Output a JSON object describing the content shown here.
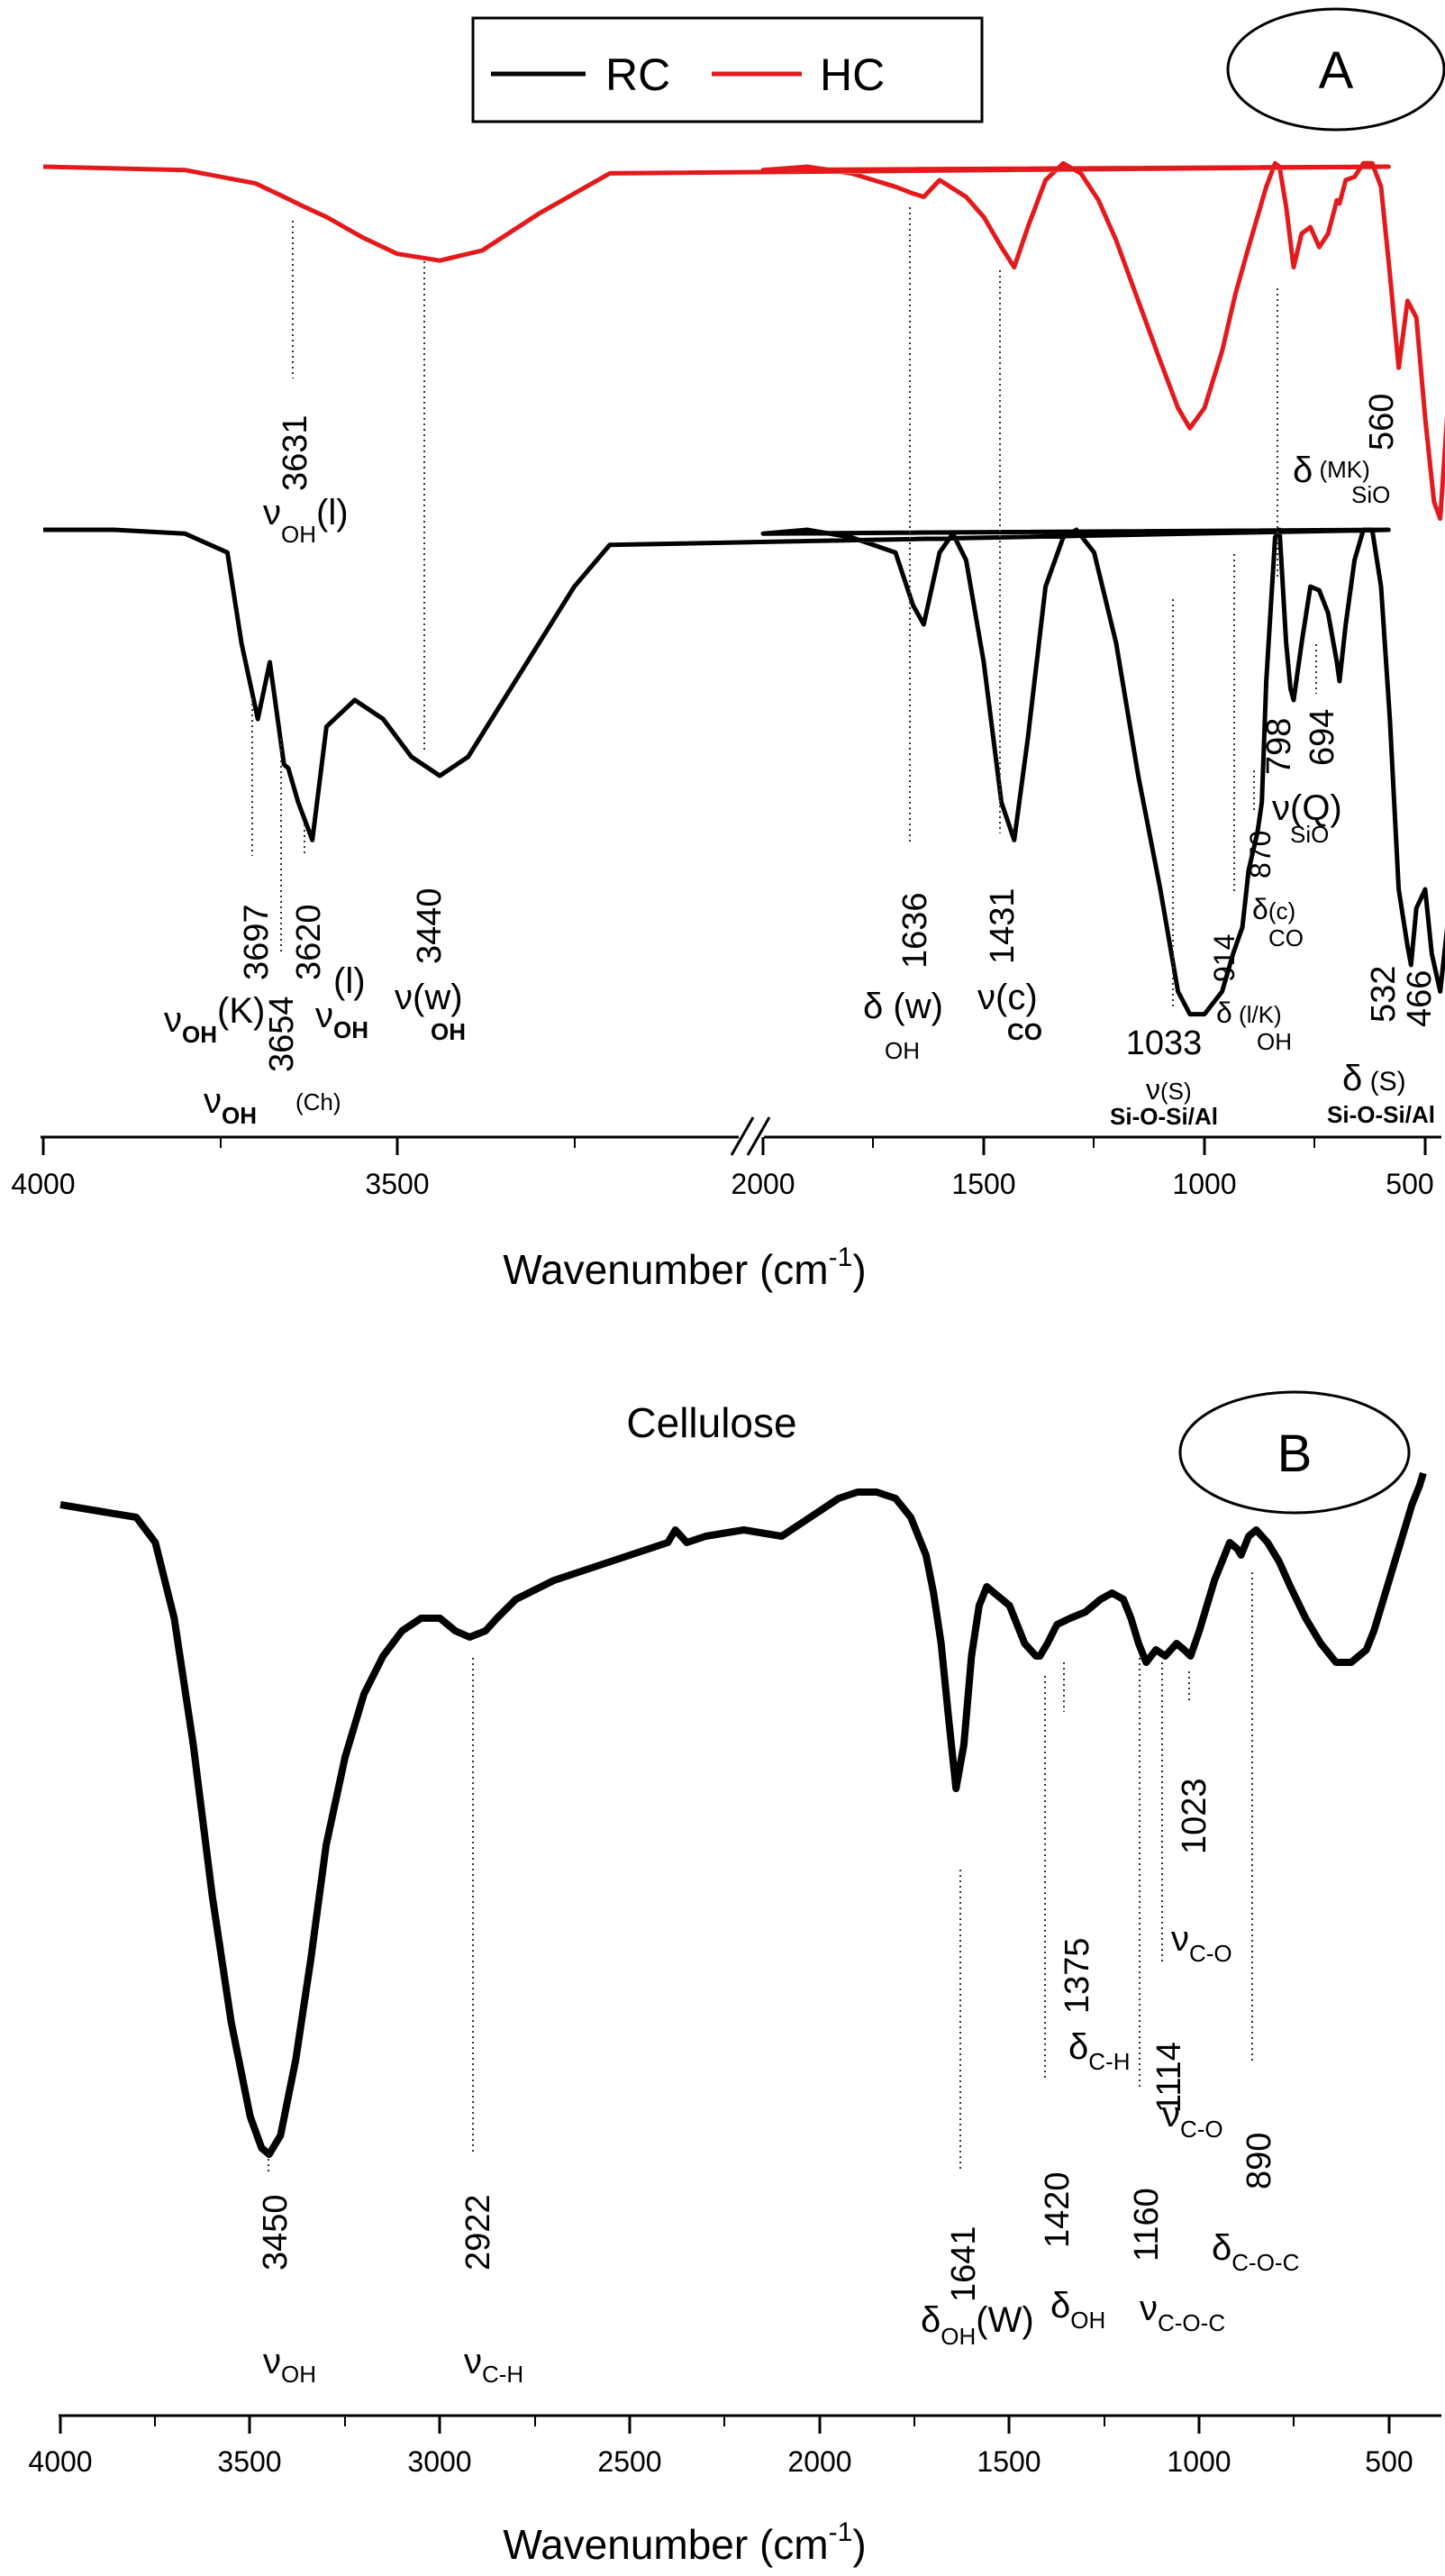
{
  "chart_data": [
    {
      "type": "line",
      "panel_label": "A",
      "xlabel": "Wavenumber (cm-1)",
      "xlabel_main": "Wavenumber (cm",
      "xlabel_sup": "-1",
      "xlabel_close": ")",
      "x_axis_break": [
        2000,
        2000
      ],
      "xlim": [
        4000,
        400
      ],
      "xticks": [
        "4000",
        "3500",
        "2000",
        "1500",
        "1000",
        "500"
      ],
      "legend": {
        "placement": "top-center",
        "entries": [
          "RC",
          "HC"
        ]
      },
      "series": [
        {
          "name": "HC",
          "color": "#e31a1c",
          "x": [
            4000,
            3800,
            3700,
            3660,
            3631,
            3600,
            3550,
            3500,
            3440,
            3380,
            3300,
            3200,
            2100,
            2000,
            1900,
            1800,
            1700,
            1660,
            1636,
            1600,
            1540,
            1500,
            1460,
            1431,
            1400,
            1360,
            1320,
            1280,
            1240,
            1200,
            1150,
            1100,
            1060,
            1033,
            1000,
            960,
            930,
            900,
            880,
            860,
            840,
            830,
            815,
            800,
            798,
            780,
            760,
            740,
            720,
            700,
            694,
            680,
            660,
            640,
            620,
            600,
            580,
            560,
            540,
            520,
            500,
            480,
            466,
            440,
            420
          ],
          "y": [
            0.0,
            0.01,
            0.05,
            0.09,
            0.12,
            0.15,
            0.21,
            0.26,
            0.28,
            0.25,
            0.14,
            0.02,
            0.0,
            0.01,
            0.0,
            0.02,
            0.06,
            0.08,
            0.09,
            0.04,
            0.09,
            0.15,
            0.24,
            0.3,
            0.18,
            0.04,
            -0.01,
            0.02,
            0.1,
            0.22,
            0.4,
            0.58,
            0.72,
            0.78,
            0.72,
            0.55,
            0.38,
            0.24,
            0.15,
            0.06,
            -0.01,
            0.0,
            0.12,
            0.28,
            0.3,
            0.2,
            0.18,
            0.24,
            0.2,
            0.1,
            0.11,
            0.04,
            0.03,
            -0.01,
            -0.01,
            0.06,
            0.32,
            0.6,
            0.4,
            0.45,
            0.75,
            1.0,
            1.05,
            0.55,
            0.25
          ]
        },
        {
          "name": "RC",
          "color": "#000000",
          "x": [
            4000,
            3900,
            3800,
            3740,
            3720,
            3697,
            3680,
            3660,
            3654,
            3640,
            3620,
            3600,
            3560,
            3520,
            3480,
            3440,
            3400,
            3350,
            3300,
            3250,
            3200,
            2100,
            2000,
            1900,
            1800,
            1700,
            1660,
            1636,
            1600,
            1570,
            1540,
            1500,
            1460,
            1431,
            1400,
            1360,
            1320,
            1290,
            1250,
            1200,
            1150,
            1100,
            1060,
            1033,
            1000,
            960,
            935,
            914,
            900,
            880,
            870,
            860,
            840,
            830,
            815,
            805,
            798,
            780,
            760,
            740,
            720,
            700,
            694,
            680,
            660,
            640,
            620,
            600,
            580,
            560,
            540,
            532,
            520,
            500,
            485,
            466,
            450,
            430,
            420
          ],
          "y": [
            0.0,
            0.0,
            0.01,
            0.06,
            0.3,
            0.5,
            0.35,
            0.62,
            0.63,
            0.72,
            0.82,
            0.52,
            0.45,
            0.5,
            0.6,
            0.65,
            0.6,
            0.45,
            0.3,
            0.15,
            0.04,
            0.0,
            0.01,
            0.0,
            0.02,
            0.06,
            0.2,
            0.25,
            0.06,
            0.01,
            0.08,
            0.35,
            0.72,
            0.82,
            0.55,
            0.15,
            0.02,
            0.0,
            0.06,
            0.3,
            0.65,
            0.95,
            1.22,
            1.28,
            1.28,
            1.22,
            1.12,
            1.05,
            0.9,
            0.8,
            0.72,
            0.4,
            0.02,
            0.0,
            0.3,
            0.42,
            0.45,
            0.3,
            0.15,
            0.16,
            0.22,
            0.35,
            0.4,
            0.25,
            0.08,
            0.0,
            0.0,
            0.15,
            0.5,
            0.95,
            1.1,
            1.15,
            1.0,
            0.95,
            1.12,
            1.22,
            1.05,
            0.95,
            0.3
          ]
        }
      ],
      "peak_labels": {
        "hc_3631": "3631",
        "hc_560": "560",
        "rc_3697": "3697",
        "rc_3654": "3654",
        "rc_3620": "3620",
        "rc_3440": "3440",
        "rc_1636": "1636",
        "rc_1431": "1431",
        "rc_1033": "1033",
        "rc_914": "914",
        "rc_870": "870",
        "rc_798": "798",
        "rc_694": "694",
        "rc_532": "532",
        "rc_466": "466"
      },
      "assignments": {
        "nu": "ν",
        "delta": "δ",
        "oh_sub": "OH",
        "co_sub": "CO",
        "sio_sub": "SiO",
        "l_paren": "(l)",
        "k_paren": "(K)",
        "w_paren": "(w)",
        "c_paren": "(c)",
        "ch_paren": "(Ch)",
        "w_space_paren": " (w)",
        "s_paren": "(S)",
        "s_space_paren": " (S)",
        "lk_paren": " (l/K)",
        "q_paren": "(Q)",
        "mk_paren": " (MK)",
        "sioal": "Si-O-Si/Al"
      }
    },
    {
      "type": "line",
      "title": "Cellulose",
      "panel_label": "B",
      "xlabel": "Wavenumber (cm-1)",
      "xlabel_main": "Wavenumber (cm",
      "xlabel_sup": "-1",
      "xlabel_close": ")",
      "xlim": [
        4000,
        400
      ],
      "xticks": [
        "4000",
        "3500",
        "3000",
        "2500",
        "2000",
        "1500",
        "1000",
        "500"
      ],
      "series": [
        {
          "name": "Cellulose",
          "color": "#000000",
          "x": [
            4000,
            3900,
            3800,
            3750,
            3700,
            3650,
            3600,
            3550,
            3500,
            3470,
            3450,
            3420,
            3380,
            3340,
            3300,
            3250,
            3200,
            3150,
            3100,
            3050,
            3000,
            2960,
            2922,
            2880,
            2850,
            2800,
            2700,
            2600,
            2500,
            2400,
            2380,
            2350,
            2300,
            2200,
            2100,
            2000,
            1950,
            1900,
            1850,
            1800,
            1760,
            1720,
            1700,
            1680,
            1660,
            1641,
            1620,
            1600,
            1580,
            1560,
            1540,
            1500,
            1460,
            1430,
            1420,
            1400,
            1375,
            1340,
            1300,
            1260,
            1230,
            1200,
            1180,
            1160,
            1140,
            1114,
            1090,
            1060,
            1040,
            1023,
            1000,
            960,
            920,
            900,
            890,
            870,
            850,
            820,
            790,
            760,
            720,
            680,
            640,
            600,
            580,
            560,
            540,
            520,
            500,
            480,
            460,
            440,
            420,
            410
          ],
          "y": [
            0.0,
            0.01,
            0.02,
            0.06,
            0.18,
            0.38,
            0.62,
            0.82,
            0.97,
            1.02,
            1.03,
            1.0,
            0.88,
            0.72,
            0.54,
            0.4,
            0.3,
            0.24,
            0.2,
            0.18,
            0.18,
            0.2,
            0.21,
            0.2,
            0.18,
            0.15,
            0.12,
            0.1,
            0.08,
            0.06,
            0.04,
            0.06,
            0.05,
            0.04,
            0.05,
            0.01,
            -0.01,
            -0.02,
            -0.02,
            -0.01,
            0.02,
            0.08,
            0.14,
            0.22,
            0.34,
            0.45,
            0.38,
            0.24,
            0.16,
            0.13,
            0.14,
            0.16,
            0.22,
            0.24,
            0.24,
            0.22,
            0.19,
            0.18,
            0.17,
            0.15,
            0.14,
            0.15,
            0.18,
            0.22,
            0.25,
            0.23,
            0.24,
            0.22,
            0.23,
            0.24,
            0.2,
            0.12,
            0.06,
            0.07,
            0.08,
            0.05,
            0.04,
            0.06,
            0.09,
            0.13,
            0.18,
            0.22,
            0.25,
            0.25,
            0.24,
            0.23,
            0.2,
            0.16,
            0.12,
            0.08,
            0.04,
            0.0,
            -0.03,
            -0.05
          ]
        }
      ],
      "peak_labels": {
        "b_3450": "3450",
        "b_2922": "2922",
        "b_1641": "1641",
        "b_1420": "1420",
        "b_1375": "1375",
        "b_1160": "1160",
        "b_1114": "1114",
        "b_1023": "1023",
        "b_890": "890"
      },
      "assignments": {
        "nu": "ν",
        "delta": "δ",
        "oh_sub": "OH",
        "ch_sub": "C-H",
        "co_sub": "C-O",
        "coc_sub": "C-O-C",
        "w_paren": "(W)"
      }
    }
  ]
}
